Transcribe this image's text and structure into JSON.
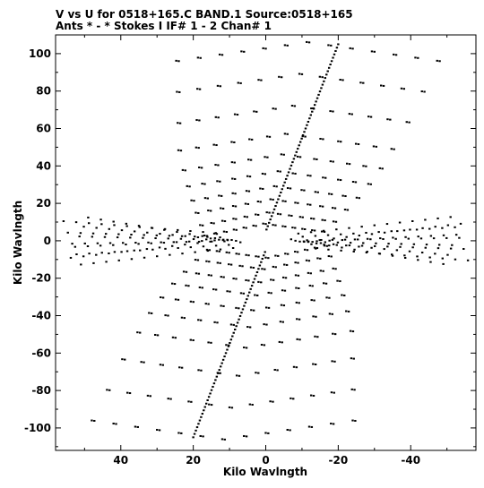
{
  "chart_data": {
    "type": "scatter",
    "title_line1": "V vs U for 0518+165.C BAND.1   Source:0518+165",
    "title_line2": "Ants * - *     Stokes I  IF# 1 - 2  Chan# 1",
    "xlabel": "Kilo Wavlngth",
    "ylabel": "Kilo Wavlngth",
    "xlim": [
      58,
      -58
    ],
    "ylim": [
      -112,
      110
    ],
    "x_ticks": [
      40,
      20,
      0,
      -20,
      -40
    ],
    "y_ticks": [
      100,
      80,
      60,
      40,
      20,
      0,
      -20,
      -40,
      -60,
      -80,
      -100
    ],
    "grid": false,
    "legend": "none",
    "marker_color": "#000000",
    "pattern": {
      "description_free": true,
      "upper_chevron_levels": [
        106,
        89,
        72,
        57,
        46,
        37,
        29,
        22,
        15,
        9
      ],
      "upper_chevron_apex_x": [
        -12,
        -10,
        -8,
        -6,
        -5,
        -4,
        -3,
        -2,
        -1,
        0
      ],
      "side_fan_slopes": [
        0.35,
        0.2,
        0.05,
        -0.1,
        -0.25
      ]
    }
  }
}
